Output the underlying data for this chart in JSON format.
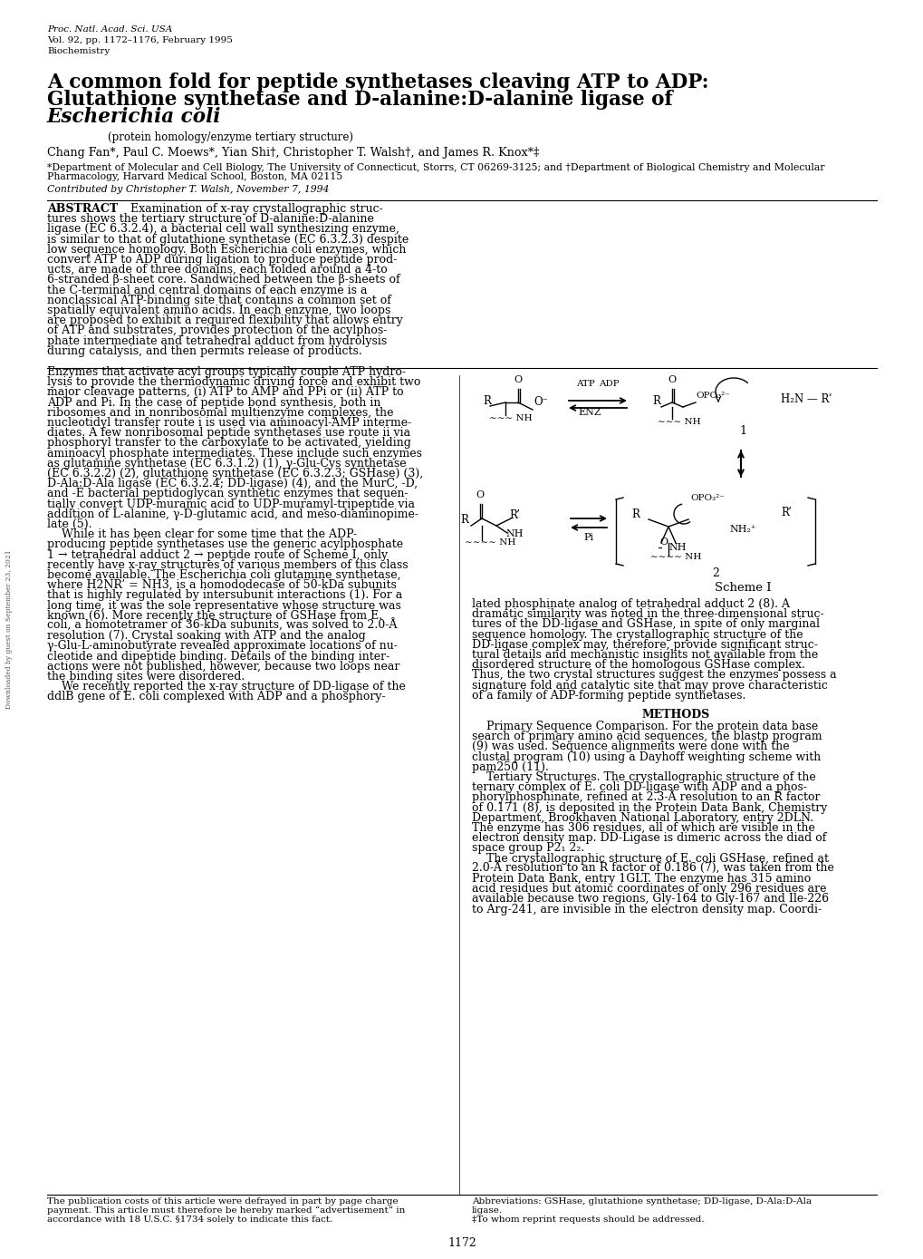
{
  "journal_line1": "Proc. Natl. Acad. Sci. USA",
  "journal_line2": "Vol. 92, pp. 1172–1176, February 1995",
  "journal_line3": "Biochemistry",
  "title_line1": "A common fold for peptide synthetases cleaving ATP to ADP:",
  "title_line2": "Glutathione synthetase and D-alanine:D-alanine ligase of",
  "title_line3": "Escherichia coli",
  "subtitle": "(protein homology/enzyme tertiary structure)",
  "authors": "Chang Fan*, Paul C. Moews*, Yian Shi†, Christopher T. Walsh†, and James R. Knox*‡",
  "affiliation1": "*Department of Molecular and Cell Biology, The University of Connecticut, Storrs, CT 06269-3125; and †Department of Biological Chemistry and Molecular",
  "affiliation2": "Pharmacology, Harvard Medical School, Boston, MA 02115",
  "contributed": "Contributed by Christopher T. Walsh, November 7, 1994",
  "footnote1_line1": "The publication costs of this article were defrayed in part by page charge",
  "footnote1_line2": "payment. This article must therefore be hereby marked “advertisement” in",
  "footnote1_line3": "accordance with 18 U.S.C. §1734 solely to indicate this fact.",
  "footnote2_line1": "Abbreviations: GSHase, glutathione synthetase; DD-ligase, D-Ala:D-Ala",
  "footnote2_line2": "ligase.",
  "footnote2_line3": "‡To whom reprint requests should be addressed.",
  "page_number": "1172",
  "bg_color": "#ffffff",
  "text_color": "#000000",
  "abstract_lines": [
    "ABSTRACT     Examination of x-ray crystallographic struc-",
    "tures shows the tertiary structure of D-alanine:D-alanine",
    "ligase (EC 6.3.2.4), a bacterial cell wall synthesizing enzyme,",
    "is similar to that of glutathione synthetase (EC 6.3.2.3) despite",
    "low sequence homology. Both Escherichia coli enzymes, which",
    "convert ATP to ADP during ligation to produce peptide prod-",
    "ucts, are made of three domains, each folded around a 4-to",
    "6-stranded β-sheet core. Sandwiched between the β-sheets of",
    "the C-terminal and central domains of each enzyme is a",
    "nonclassical ATP-binding site that contains a common set of",
    "spatially equivalent amino acids. In each enzyme, two loops",
    "are proposed to exhibit a required flexibility that allows entry",
    "of ATP and substrates, provides protection of the acylphos-",
    "phate intermediate and tetrahedral adduct from hydrolysis",
    "during catalysis, and then permits release of products."
  ],
  "left_col_lines": [
    "Enzymes that activate acyl groups typically couple ATP hydro-",
    "lysis to provide the thermodynamic driving force and exhibit two",
    "major cleavage patterns, (i) ATP to AMP and PPi or (ii) ATP to",
    "ADP and Pi. In the case of peptide bond synthesis, both in",
    "ribosomes and in nonribosomal multienzyme complexes, the",
    "nucleotidyl transfer route i is used via aminoacyl-AMP interme-",
    "diates. A few nonribosomal peptide synthetases use route ii via",
    "phosphoryl transfer to the carboxylate to be activated, yielding",
    "aminoacyl phosphate intermediates. These include such enzymes",
    "as glutamine synthetase (EC 6.3.1.2) (1), γ-Glu-Cys synthetase",
    "(EC 6.3.2.2) (2), glutathione synthetase (EC 6.3.2.3; GSHase) (3),",
    "D-Ala:D-Ala ligase (EC 6.3.2.4; DD-ligase) (4), and the MurC, -D,",
    "and -E bacterial peptidoglycan synthetic enzymes that sequen-",
    "tially convert UDP-muramic acid to UDP-muramyl-tripeptide via",
    "addition of L-alanine, γ-D-glutamic acid, and meso-diaminopime-",
    "late (5).",
    "    While it has been clear for some time that the ADP-",
    "producing peptide synthetases use the generic acylphosphate",
    "1 → tetrahedral adduct 2 → peptide route of Scheme I, only",
    "recently have x-ray structures of various members of this class",
    "become available. The Escherichia coli glutamine synthetase,",
    "where H2NR’ = NH3, is a homododecase of 50-kDa subunits",
    "that is highly regulated by intersubunit interactions (1). For a",
    "long time, it was the sole representative whose structure was",
    "known (6). More recently the structure of GSHase from E.",
    "coli, a homotetramer of 36-kDa subunits, was solved to 2.0-Å",
    "resolution (7). Crystal soaking with ATP and the analog",
    "γ-Glu-L-aminobutyrate revealed approximate locations of nu-",
    "cleotide and dipeptide binding. Details of the binding inter-",
    "actions were not published, however, because two loops near",
    "the binding sites were disordered.",
    "    We recently reported the x-ray structure of DD-ligase of the",
    "ddlB gene of E. coli complexed with ADP and a phosphory-"
  ],
  "right_col_top_lines": [
    "lated phosphinate analog of tetrahedral adduct 2 (8). A",
    "dramatic similarity was noted in the three-dimensional struc-",
    "tures of the DD-ligase and GSHase, in spite of only marginal",
    "sequence homology. The crystallographic structure of the",
    "DD-ligase complex may, therefore, provide significant struc-",
    "tural details and mechanistic insights not available from the",
    "disordered structure of the homologous GSHase complex.",
    "Thus, the two crystal structures suggest the enzymes possess a",
    "signature fold and catalytic site that may prove characteristic",
    "of a family of ADP-forming peptide synthetases."
  ],
  "methods_lines": [
    "    Primary Sequence Comparison. For the protein data base",
    "search of primary amino acid sequences, the blastp program",
    "(9) was used. Sequence alignments were done with the",
    "clustal program (10) using a Dayhoff weighting scheme with",
    "pam250 (11).",
    "    Tertiary Structures. The crystallographic structure of the",
    "ternary complex of E. coli DD-ligase with ADP and a phos-",
    "phorylphosphinate, refined at 2.3-Å resolution to an R factor",
    "of 0.171 (8), is deposited in the Protein Data Bank, Chemistry",
    "Department, Brookhaven National Laboratory, entry 2DLN.",
    "The enzyme has 306 residues, all of which are visible in the",
    "electron density map. DD-Ligase is dimeric across the diad of",
    "space group P2₁ 2₂.",
    "    The crystallographic structure of E. coli GSHase, refined at",
    "2.0-Å resolution to an R factor of 0.186 (7), was taken from the",
    "Protein Data Bank, entry 1GLT. The enzyme has 315 amino",
    "acid residues but atomic coordinates of only 296 residues are",
    "available because two regions, Gly-164 to Gly-167 and Ile-226",
    "to Arg-241, are invisible in the electron density map. Coordi-"
  ]
}
